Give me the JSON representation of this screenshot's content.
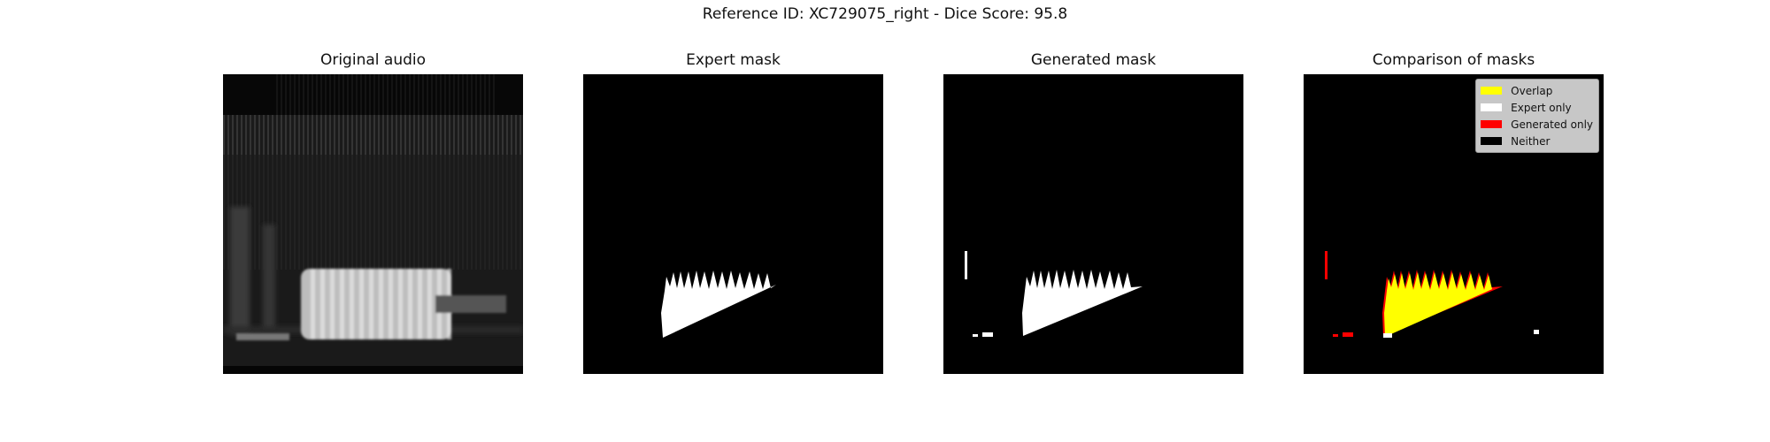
{
  "figure": {
    "title": "Reference ID: XC729075_right - Dice Score: 95.8"
  },
  "panels": [
    {
      "title": "Original audio"
    },
    {
      "title": "Expert mask"
    },
    {
      "title": "Generated mask"
    },
    {
      "title": "Comparison of masks"
    }
  ],
  "legend": {
    "items": [
      {
        "label": "Overlap",
        "color": "#ffff00"
      },
      {
        "label": "Expert only",
        "color": "#ffffff"
      },
      {
        "label": "Generated only",
        "color": "#ff0000"
      },
      {
        "label": "Neither",
        "color": "#000000"
      }
    ]
  }
}
